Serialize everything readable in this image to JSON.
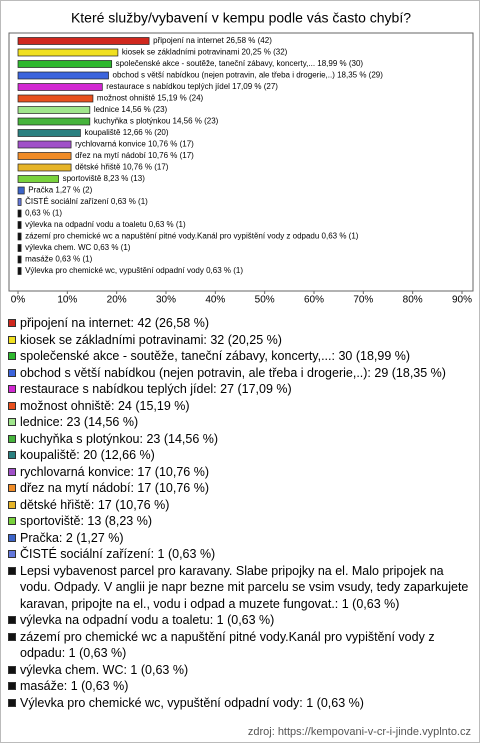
{
  "chart_data": {
    "type": "bar",
    "orientation": "horizontal",
    "title": "Které služby/vybavení v kempu podle vás často chybí?",
    "categories": [
      "připojení na internet",
      "kiosek se základními potravinami",
      "společenské akce - soutěže, taneční zábavy, koncerty,...",
      "obchod s větší nabídkou (nejen potravin, ale třeba i drogerie,..)",
      "restaurace s nabídkou teplých jídel",
      "možnost ohniště",
      "lednice",
      "kuchyňka s plotýnkou",
      "koupaliště",
      "rychlovarná konvice",
      "dřez na mytí nádobí",
      "dětské hřiště",
      "sportoviště",
      "Pračka",
      "ČISTÉ sociální zařízení",
      null,
      "výlevka na odpadní vodu a toaletu",
      "zázemí pro chemické wc a napuštění pitné vody.Kanál pro vypištění vody z odpadu",
      "výlevka chem. WC",
      "masáže",
      "Výlevka pro chemické wc,  vypuštění odpadní vody"
    ],
    "values": [
      26.58,
      20.25,
      18.99,
      18.35,
      17.09,
      15.19,
      14.56,
      14.56,
      12.66,
      10.76,
      10.76,
      10.76,
      8.23,
      1.27,
      0.63,
      0.63,
      0.63,
      0.63,
      0.63,
      0.63,
      0.63
    ],
    "value_labels": [
      "připojení na internet 26,58 % (42)",
      "kiosek se základními potravinami 20,25 % (32)",
      "společenské akce - soutěže, taneční zábavy, koncerty,... 18,99 % (30)",
      "obchod s větší nabídkou (nejen potravin, ale třeba i drogerie,..) 18,35 % (29)",
      "restaurace s nabídkou teplých jídel 17,09 % (27)",
      "možnost ohniště 15,19 % (24)",
      "lednice 14,56 % (23)",
      "kuchyňka s plotýnkou 14,56 % (23)",
      "koupaliště 12,66 % (20)",
      "rychlovarná konvice 10,76 % (17)",
      "dřez na mytí nádobí 10,76 % (17)",
      "dětské hřiště 10,76 % (17)",
      "sportoviště 8,23 % (13)",
      "Pračka 1,27 % (2)",
      "ČISTÉ sociální zařízení 0,63 % (1)",
      "0,63 % (1)",
      "výlevka na odpadní vodu a toaletu 0,63 % (1)",
      "zázemí pro chemické wc a napuštění pitné vody.Kanál pro vypištění vody z odpadu 0,63 % (1)",
      "výlevka chem. WC 0,63 % (1)",
      "masáže 0,63 % (1)",
      "Výlevka pro chemické wc,  vypuštění odpadní vody 0,63 % (1)"
    ],
    "colors": [
      "#d0281e",
      "#f0e020",
      "#2eb82e",
      "#3c64dc",
      "#d228d2",
      "#e8501e",
      "#a0e68c",
      "#46b43c",
      "#2a8080",
      "#a050c8",
      "#f08c28",
      "#e6b428",
      "#78d23c",
      "#3c64c8",
      "#6478dc",
      "#111111",
      "#111111",
      "#111111",
      "#111111",
      "#111111",
      "#111111"
    ],
    "legend_labels": [
      "připojení na internet: 42 (26,58 %)",
      "kiosek se základními potravinami: 32 (20,25 %)",
      "společenské akce - soutěže, taneční zábavy, koncerty,...: 30 (18,99 %)",
      "obchod s větší nabídkou (nejen potravin, ale třeba i drogerie,..): 29 (18,35 %)",
      "restaurace s nabídkou teplých jídel: 27 (17,09 %)",
      "možnost ohniště: 24 (15,19 %)",
      "lednice: 23 (14,56 %)",
      "kuchyňka s plotýnkou: 23 (14,56 %)",
      "koupaliště: 20 (12,66 %)",
      "rychlovarná konvice: 17 (10,76 %)",
      "dřez na mytí nádobí: 17 (10,76 %)",
      "dětské hřiště: 17 (10,76 %)",
      "sportoviště: 13 (8,23 %)",
      "Pračka: 2 (1,27 %)",
      "ČISTÉ sociální zařízení: 1 (0,63 %)",
      "Lepsi vybavenost parcel pro karavany. Slabe pripojky na el. Malo pripojek na vodu. Odpady. V anglii je napr bezne mit parcelu se vsim vsudy, tedy zaparkujete karavan, pripojte na el., vodu i odpad a muzete fungovat.: 1 (0,63 %)",
      "výlevka na odpadní vodu a toaletu: 1 (0,63 %)",
      "zázemí pro chemické wc a napuštění pitné vody.Kanál pro vypištění vody z odpadu: 1 (0,63 %)",
      "výlevka chem. WC: 1 (0,63 %)",
      "masáže: 1 (0,63 %)",
      "Výlevka pro chemické wc,  vypuštění odpadní vody: 1 (0,63 %)"
    ],
    "xlim": [
      0,
      90
    ],
    "xticks": [
      {
        "value": 0,
        "label": "0%"
      },
      {
        "value": 10,
        "label": "10%"
      },
      {
        "value": 20,
        "label": "20%"
      },
      {
        "value": 30,
        "label": "30%"
      },
      {
        "value": 40,
        "label": "40%"
      },
      {
        "value": 50,
        "label": "50%"
      },
      {
        "value": 60,
        "label": "60%"
      },
      {
        "value": 70,
        "label": "70%"
      },
      {
        "value": 80,
        "label": "80%"
      },
      {
        "value": 90,
        "label": "90%"
      }
    ],
    "source": "zdroj: https://kempovani-v-cr-i-jinde.vyplnto.cz"
  }
}
